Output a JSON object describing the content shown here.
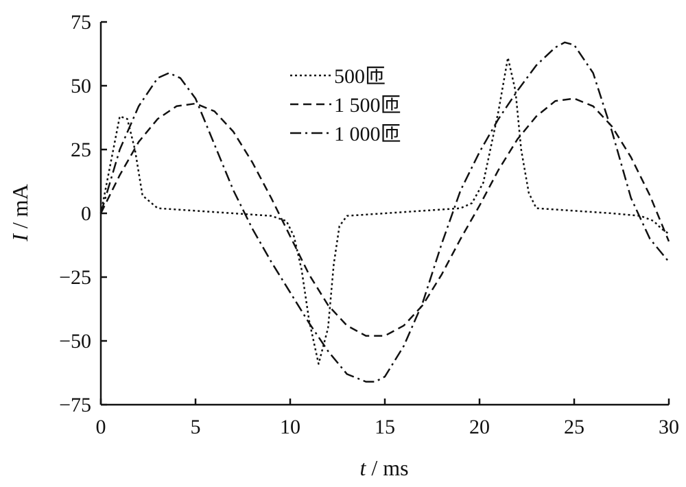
{
  "chart_data": {
    "type": "line",
    "xlabel_var": "t",
    "xlabel_unit": " / ms",
    "ylabel_var": "I",
    "ylabel_unit": " / mA",
    "xlim": [
      0,
      30
    ],
    "ylim": [
      -75,
      75
    ],
    "xticks": [
      0,
      5,
      10,
      15,
      20,
      25,
      30
    ],
    "yticks": [
      75,
      50,
      25,
      0,
      -25,
      -50,
      -75
    ],
    "xtick_labels": [
      "0",
      "5",
      "10",
      "15",
      "20",
      "25",
      "30"
    ],
    "ytick_labels": [
      "75",
      "50",
      "25",
      "0",
      "−25",
      "−50",
      "−75"
    ],
    "grid": false,
    "legend_position": "top-center",
    "series": [
      {
        "name": "500匝",
        "dash": "dotted",
        "x": [
          0,
          1.0,
          1.4,
          1.8,
          2.2,
          3.0,
          5.0,
          7.0,
          9.0,
          9.8,
          10.2,
          10.6,
          11.0,
          11.5,
          12.0,
          12.3,
          12.6,
          13.0,
          15.0,
          17.0,
          19.0,
          19.6,
          20.2,
          21.0,
          21.5,
          21.9,
          22.2,
          22.6,
          23.0,
          25.0,
          27.0,
          28.5,
          29.2,
          29.6,
          30.0
        ],
        "y": [
          0,
          38,
          37,
          25,
          7,
          2,
          1,
          0,
          -1,
          -3,
          -9,
          -22,
          -42,
          -59,
          -45,
          -20,
          -5,
          -1,
          0,
          1,
          2,
          4,
          12,
          40,
          61,
          48,
          25,
          8,
          2,
          1,
          0,
          -1,
          -3,
          -6,
          -8
        ]
      },
      {
        "name": "1 500匝",
        "dash": "dashed",
        "x": [
          0,
          1.0,
          2.0,
          3.0,
          4.0,
          5.0,
          6.0,
          7.0,
          8.0,
          9.0,
          10.0,
          11.0,
          12.0,
          13.0,
          14.0,
          15.0,
          16.0,
          17.0,
          18.0,
          19.0,
          20.0,
          21.0,
          22.0,
          23.0,
          24.0,
          25.0,
          26.0,
          27.0,
          28.0,
          29.0,
          30.0
        ],
        "y": [
          0,
          15,
          28,
          37,
          42,
          43,
          40,
          32,
          20,
          6,
          -9,
          -24,
          -36,
          -44,
          -48,
          -48,
          -44,
          -36,
          -24,
          -10,
          3,
          17,
          29,
          38,
          44,
          45,
          42,
          34,
          22,
          7,
          -11
        ]
      },
      {
        "name": "1 000匝",
        "dash": "dashdot",
        "x": [
          0,
          1.0,
          2.0,
          3.0,
          3.6,
          4.2,
          5.0,
          6.0,
          7.0,
          8.0,
          9.0,
          10.0,
          11.0,
          12.0,
          13.0,
          14.0,
          14.5,
          15.0,
          16.0,
          17.0,
          18.0,
          19.0,
          20.0,
          21.0,
          22.0,
          23.0,
          24.0,
          24.5,
          25.0,
          26.0,
          27.0,
          28.0,
          29.0,
          30.0
        ],
        "y": [
          0,
          25,
          42,
          53,
          55,
          53,
          45,
          27,
          9,
          -6,
          -19,
          -31,
          -43,
          -54,
          -63,
          -66,
          -66,
          -64,
          -52,
          -35,
          -12,
          9,
          24,
          37,
          48,
          58,
          65,
          67,
          66,
          55,
          32,
          6,
          -10,
          -19
        ]
      }
    ]
  }
}
